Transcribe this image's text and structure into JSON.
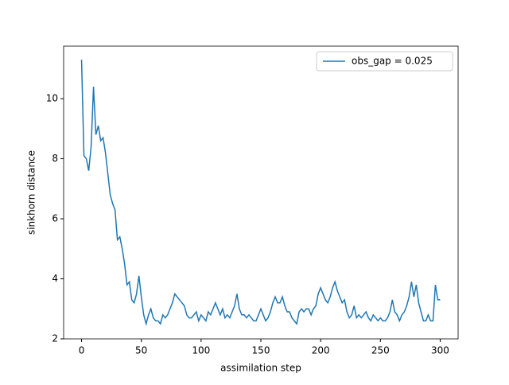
{
  "chart_data": {
    "type": "line",
    "xlabel": "assimilation step",
    "ylabel": "sinkhorn distance",
    "x": [
      0,
      2,
      4,
      6,
      8,
      10,
      12,
      14,
      16,
      18,
      20,
      22,
      24,
      26,
      28,
      30,
      32,
      34,
      36,
      38,
      40,
      42,
      44,
      46,
      48,
      50,
      52,
      54,
      56,
      58,
      60,
      62,
      64,
      66,
      68,
      70,
      72,
      74,
      76,
      78,
      80,
      82,
      84,
      86,
      88,
      90,
      92,
      94,
      96,
      98,
      100,
      102,
      104,
      106,
      108,
      110,
      112,
      114,
      116,
      118,
      120,
      122,
      124,
      126,
      128,
      130,
      132,
      134,
      136,
      138,
      140,
      142,
      144,
      146,
      148,
      150,
      152,
      154,
      156,
      158,
      160,
      162,
      164,
      166,
      168,
      170,
      172,
      174,
      176,
      178,
      180,
      182,
      184,
      186,
      188,
      190,
      192,
      194,
      196,
      198,
      200,
      202,
      204,
      206,
      208,
      210,
      212,
      214,
      216,
      218,
      220,
      222,
      224,
      226,
      228,
      230,
      232,
      234,
      236,
      238,
      240,
      242,
      244,
      246,
      248,
      250,
      252,
      254,
      256,
      258,
      260,
      262,
      264,
      266,
      268,
      270,
      272,
      274,
      276,
      278,
      280,
      282,
      284,
      286,
      288,
      290,
      292,
      294,
      296,
      298,
      300
    ],
    "series": [
      {
        "name": "obs_gap = 0.025",
        "color": "#1f77b4",
        "values": [
          11.3,
          8.1,
          8.0,
          7.6,
          8.4,
          10.4,
          8.8,
          9.1,
          8.6,
          8.7,
          8.2,
          7.5,
          6.8,
          6.5,
          6.3,
          5.3,
          5.4,
          5.0,
          4.5,
          3.8,
          3.9,
          3.3,
          3.2,
          3.5,
          4.1,
          3.4,
          2.8,
          2.5,
          2.8,
          3.0,
          2.7,
          2.6,
          2.6,
          2.5,
          2.8,
          2.7,
          2.8,
          3.0,
          3.2,
          3.5,
          3.4,
          3.3,
          3.2,
          3.1,
          2.8,
          2.7,
          2.7,
          2.8,
          2.9,
          2.6,
          2.8,
          2.7,
          2.6,
          2.9,
          2.8,
          3.0,
          3.2,
          3.0,
          2.8,
          3.0,
          2.7,
          2.8,
          2.7,
          2.9,
          3.1,
          3.5,
          3.0,
          2.8,
          2.8,
          2.7,
          2.8,
          2.7,
          2.6,
          2.6,
          2.8,
          3.0,
          2.8,
          2.6,
          2.7,
          2.9,
          3.2,
          3.4,
          3.2,
          3.2,
          3.4,
          3.1,
          2.9,
          2.9,
          2.7,
          2.6,
          2.5,
          2.9,
          3.0,
          2.9,
          3.0,
          3.0,
          2.8,
          3.0,
          3.1,
          3.5,
          3.7,
          3.5,
          3.3,
          3.2,
          3.4,
          3.7,
          3.9,
          3.6,
          3.4,
          3.2,
          3.3,
          2.9,
          2.7,
          2.8,
          3.1,
          2.7,
          2.8,
          2.7,
          2.8,
          2.9,
          2.7,
          2.6,
          2.8,
          2.7,
          2.6,
          2.7,
          2.6,
          2.6,
          2.7,
          2.9,
          3.3,
          2.9,
          2.8,
          2.6,
          2.8,
          2.9,
          3.1,
          3.4,
          3.9,
          3.4,
          3.8,
          3.2,
          2.9,
          2.6,
          2.6,
          2.8,
          2.6,
          2.6,
          3.8,
          3.3,
          3.3
        ]
      }
    ],
    "xlim": [
      -15,
      315
    ],
    "ylim": [
      2.0,
      11.75
    ],
    "xticks": [
      0,
      50,
      100,
      150,
      200,
      250,
      300
    ],
    "yticks": [
      2,
      4,
      6,
      8,
      10
    ],
    "legend": "upper right"
  }
}
